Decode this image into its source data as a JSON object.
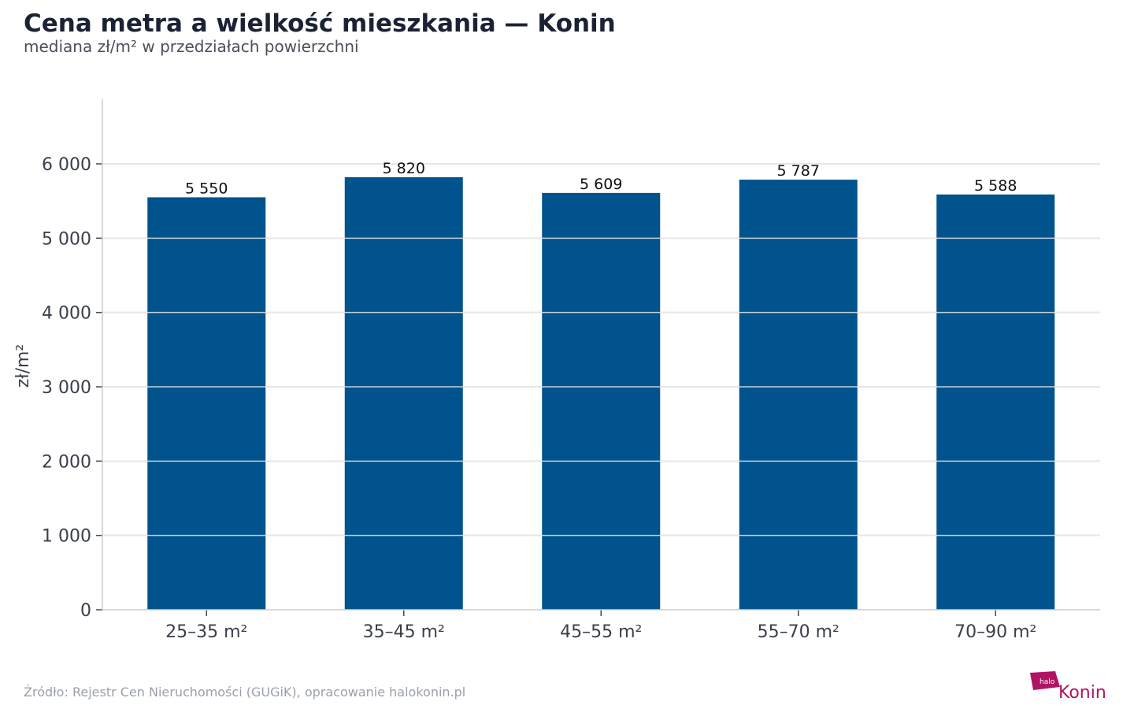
{
  "title": "Cena metra a wielkość mieszkania — Konin",
  "subtitle": "mediana zł/m² w przedziałach powierzchni",
  "source": "Źródło: Rejestr Cen Nieruchomości (GUGiK), opracowanie halokonin.pl",
  "logo": {
    "small_text": "halo",
    "text": "Konin"
  },
  "colors": {
    "bar": "#00538c",
    "grid": "#e6e6e6",
    "axis": "#cccccc",
    "logo": "#b01463"
  },
  "chart_data": {
    "type": "bar",
    "categories": [
      "25–35 m²",
      "35–45 m²",
      "45–55 m²",
      "55–70 m²",
      "70–90 m²"
    ],
    "values": [
      5550,
      5820,
      5609,
      5787,
      5588
    ],
    "value_labels": [
      "5 550",
      "5 820",
      "5 609",
      "5 787",
      "5 588"
    ],
    "title": "Cena metra a wielkość mieszkania — Konin",
    "subtitle": "mediana zł/m² w przedziałach powierzchni",
    "xlabel": "",
    "ylabel": "zł/m²",
    "ylim": [
      0,
      7000
    ],
    "yticks": [
      0,
      1000,
      2000,
      3000,
      4000,
      5000,
      6000
    ],
    "ytick_labels": [
      "0",
      "1 000",
      "2 000",
      "3 000",
      "4 000",
      "5 000",
      "6 000"
    ],
    "grid": true
  }
}
